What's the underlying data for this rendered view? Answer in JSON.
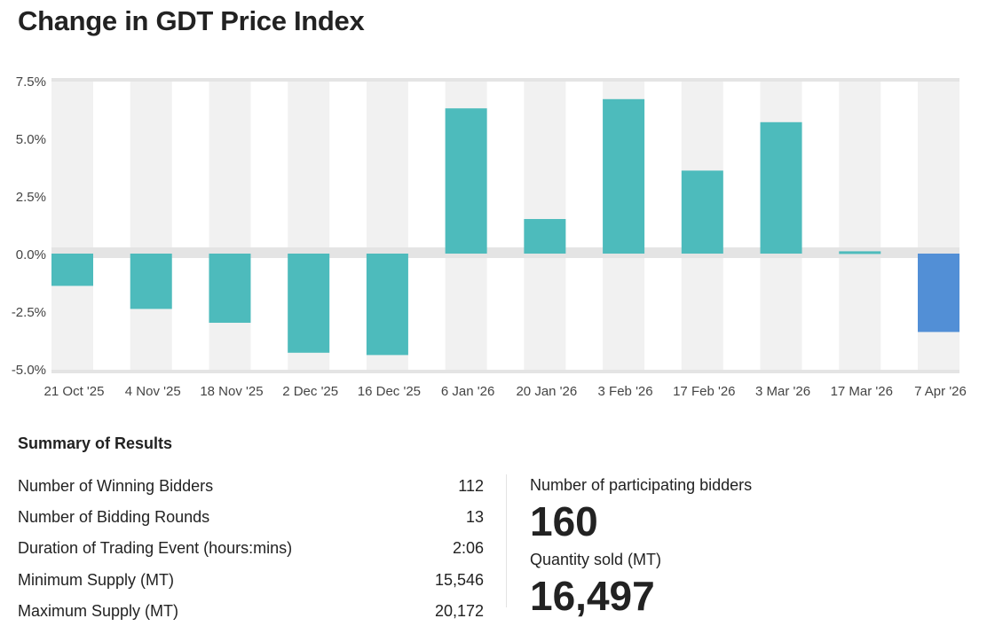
{
  "chart_data": {
    "type": "bar",
    "title": "Change in GDT Price Index",
    "categories": [
      "21 Oct '25",
      "4 Nov '25",
      "18 Nov '25",
      "2 Dec '25",
      "16 Dec '25",
      "6 Jan '26",
      "20 Jan '26",
      "3 Feb '26",
      "17 Feb '26",
      "3 Mar '26",
      "17 Mar '26",
      "7 Apr '26"
    ],
    "values": [
      -1.4,
      -2.4,
      -3.0,
      -4.3,
      -4.4,
      6.3,
      1.5,
      6.7,
      3.6,
      5.7,
      0.1,
      -3.4
    ],
    "unit": "%",
    "ylim": [
      -5,
      7.5
    ],
    "yticks": [
      "7.5%",
      "5.0%",
      "2.5%",
      "0.0%",
      "-2.5%",
      "-5.0%"
    ],
    "ytick_values": [
      7.5,
      5,
      2.5,
      0,
      -2.5,
      -5
    ],
    "colors": {
      "past": "#4dbbbc",
      "latest": "#528fd6",
      "stripe": "#f1f1f1",
      "axis": "#e4e4e4"
    },
    "grid": false,
    "legend": "none"
  },
  "summary": {
    "title": "Summary of Results",
    "rows": [
      {
        "label": "Number of Winning Bidders",
        "value": "112"
      },
      {
        "label": "Number of Bidding Rounds",
        "value": "13"
      },
      {
        "label": "Duration of Trading Event (hours:mins)",
        "value": "2:06"
      },
      {
        "label": "Minimum Supply (MT)",
        "value": "15,546"
      },
      {
        "label": "Maximum Supply (MT)",
        "value": "20,172"
      }
    ],
    "participating_label": "Number of participating bidders",
    "participating_value": "160",
    "quantity_label": "Quantity sold (MT)",
    "quantity_value": "16,497"
  }
}
